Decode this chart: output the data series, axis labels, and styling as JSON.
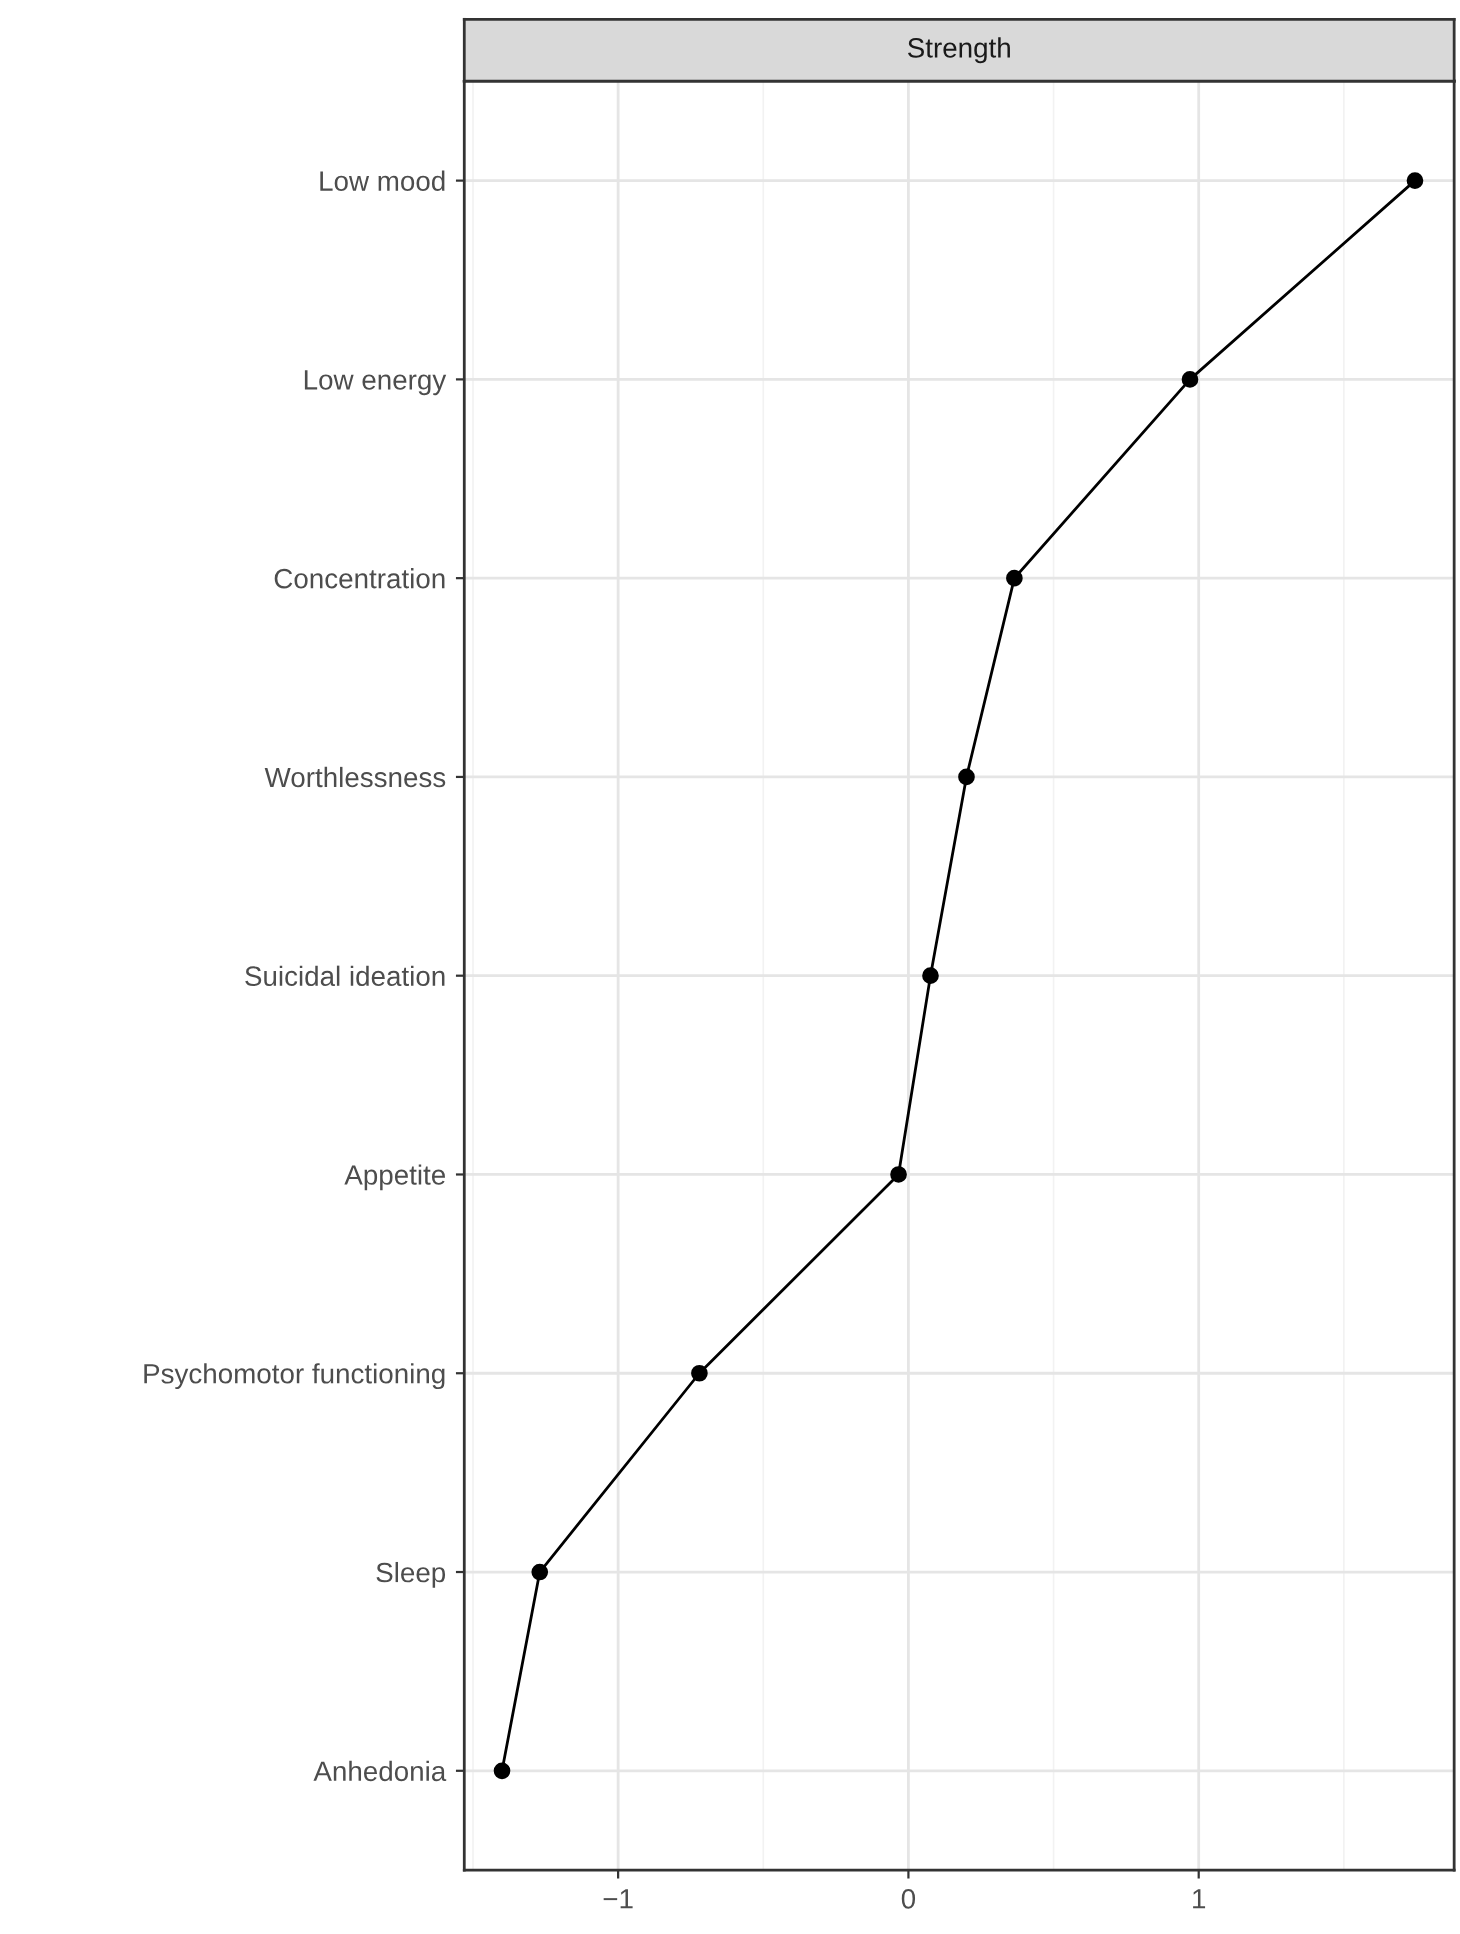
{
  "chart_data": {
    "type": "line",
    "orientation": "horizontal",
    "title": "Strength",
    "categories": [
      "Low mood",
      "Low energy",
      "Concentration",
      "Worthlessness",
      "Suicidal ideation",
      "Appetite",
      "Psychomotor functioning",
      "Sleep",
      "Anhedonia"
    ],
    "values": [
      1.745,
      0.97,
      0.365,
      0.2,
      0.076,
      -0.034,
      -0.72,
      -1.27,
      -1.4
    ],
    "color": "#000000",
    "marker": "circle",
    "line_style": "solid",
    "xlim": [
      -1.53,
      1.88
    ],
    "xticks": [
      -1,
      0,
      1
    ],
    "grid": true
  }
}
